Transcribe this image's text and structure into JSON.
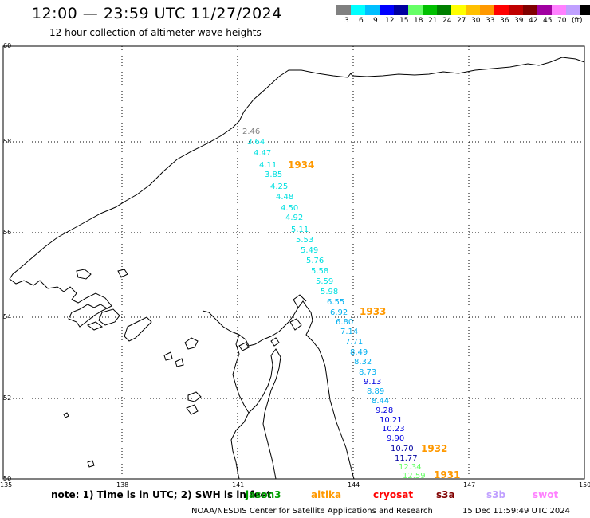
{
  "header": {
    "title": "12:00 — 23:59 UTC 11/27/2024",
    "subtitle": "12 hour collection of altimeter wave heights"
  },
  "colorbar": {
    "swatches": [
      "#808080",
      "#00ffff",
      "#00bfff",
      "#0000ff",
      "#0000a0",
      "#66ff66",
      "#00c000",
      "#008000",
      "#ffff00",
      "#ffc000",
      "#ff9900",
      "#ff0000",
      "#c00000",
      "#800000",
      "#a000a0",
      "#ff80ff",
      "#c0a0ff",
      "#000000"
    ],
    "labels": [
      "3",
      "6",
      "9",
      "12",
      "15",
      "18",
      "21",
      "24",
      "27",
      "30",
      "33",
      "36",
      "39",
      "42",
      "45",
      "70",
      "(ft)"
    ]
  },
  "map": {
    "lat_labels": [
      "60",
      "58",
      "56",
      "54",
      "52",
      "50"
    ],
    "lon_labels": [
      "135",
      "138",
      "141",
      "144",
      "147",
      "150"
    ]
  },
  "track_labels": [
    {
      "value": "2.46",
      "color": "#808080"
    },
    {
      "value": "3.64",
      "color": "#00e0e0"
    },
    {
      "value": "4.47",
      "color": "#00e0e0"
    },
    {
      "value": "4.11",
      "color": "#00e0e0"
    },
    {
      "value": "3.85",
      "color": "#00e0e0"
    },
    {
      "value": "4.25",
      "color": "#00e0e0"
    },
    {
      "value": "4.48",
      "color": "#00e0e0"
    },
    {
      "value": "4.50",
      "color": "#00e0e0"
    },
    {
      "value": "4.92",
      "color": "#00e0e0"
    },
    {
      "value": "5.11",
      "color": "#00e0e0"
    },
    {
      "value": "5.53",
      "color": "#00e0e0"
    },
    {
      "value": "5.49",
      "color": "#00e0e0"
    },
    {
      "value": "5.76",
      "color": "#00e0e0"
    },
    {
      "value": "5.58",
      "color": "#00e0e0"
    },
    {
      "value": "5.59",
      "color": "#00e0e0"
    },
    {
      "value": "5.98",
      "color": "#00e0e0"
    },
    {
      "value": "6.55",
      "color": "#00b0f0"
    },
    {
      "value": "6.92",
      "color": "#00b0f0"
    },
    {
      "value": "6.80",
      "color": "#00b0f0"
    },
    {
      "value": "7.14",
      "color": "#00b0f0"
    },
    {
      "value": "7.71",
      "color": "#00b0f0"
    },
    {
      "value": "8.49",
      "color": "#00b0f0"
    },
    {
      "value": "8.32",
      "color": "#00b0f0"
    },
    {
      "value": "8.73",
      "color": "#00b0f0"
    },
    {
      "value": "9.13",
      "color": "#0000e0"
    },
    {
      "value": "8.89",
      "color": "#00b0f0"
    },
    {
      "value": "8.44",
      "color": "#00b0f0"
    },
    {
      "value": "9.28",
      "color": "#0000e0"
    },
    {
      "value": "10.21",
      "color": "#0000e0"
    },
    {
      "value": "10.23",
      "color": "#0000e0"
    },
    {
      "value": "9.90",
      "color": "#0000e0"
    },
    {
      "value": "10.70",
      "color": "#0000a0"
    },
    {
      "value": "11.77",
      "color": "#0000a0"
    },
    {
      "value": "12.34",
      "color": "#66ff66"
    },
    {
      "value": "12.59",
      "color": "#66ff66"
    }
  ],
  "time_labels": [
    {
      "value": "1934",
      "color": "#ff9900"
    },
    {
      "value": "1933",
      "color": "#ff9900"
    },
    {
      "value": "1932",
      "color": "#ff9900"
    },
    {
      "value": "1931",
      "color": "#ff9900"
    }
  ],
  "footer": {
    "note": "note:  1) Time is in UTC;  2) SWH is in feet",
    "satellites": [
      {
        "name": "jason3",
        "color": "#00a000"
      },
      {
        "name": "altika",
        "color": "#ff9900"
      },
      {
        "name": "cryosat",
        "color": "#ff0000"
      },
      {
        "name": "s3a",
        "color": "#800000"
      },
      {
        "name": "s3b",
        "color": "#c0a0ff"
      },
      {
        "name": "swot",
        "color": "#ff80ff"
      }
    ],
    "credit": "NOAA/NESDIS Center for Satellite Applications and Research",
    "timestamp": "15 Dec 11:59:49 UTC 2024"
  }
}
